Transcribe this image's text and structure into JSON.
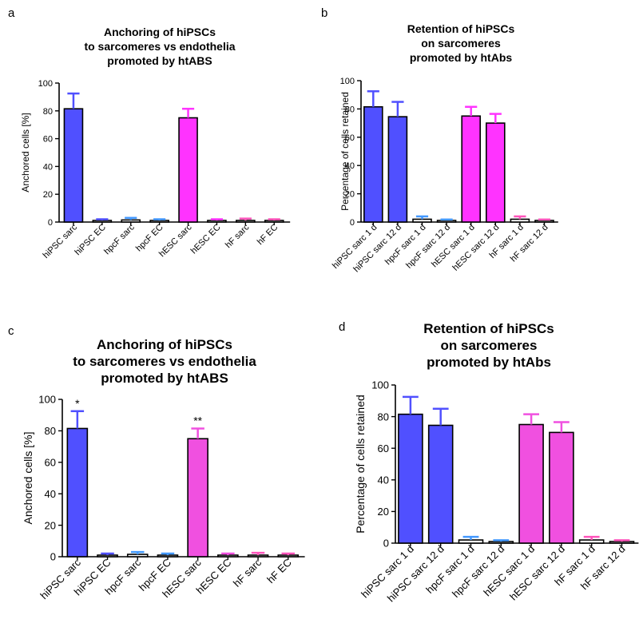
{
  "panel_letters": [
    "a",
    "b",
    "c",
    "d"
  ],
  "colors": {
    "blue": "#5050ff",
    "magenta": "#ff33ff",
    "magenta_c": "#f050e0",
    "lightblue": "#4499ff",
    "pink": "#ff55bb",
    "axis": "#000000"
  },
  "chart_data": [
    {
      "type": "bar",
      "title": [
        "Anchoring of hiPSCs",
        "to sarcomeres vs endothelia",
        "promoted by htABS"
      ],
      "ylabel": "Anchored cells [%]",
      "ylim": [
        0,
        100
      ],
      "yticks": [
        0,
        20,
        40,
        60,
        80,
        100
      ],
      "categories": [
        "hiPSC sarc",
        "hiPSC EC",
        "hpcF sarc",
        "hpcF EC",
        "hESC sarc",
        "hESC EC",
        "hF sarc",
        "hF EC"
      ],
      "values": [
        81.5,
        1.0,
        1.5,
        1.0,
        75.0,
        1.0,
        1.0,
        1.0
      ],
      "errors": [
        11.0,
        1.0,
        1.5,
        1.0,
        6.5,
        1.0,
        1.5,
        1.0
      ],
      "bar_colors": [
        "#5050ff",
        "#ffffff",
        "#ffffff",
        "#ffffff",
        "#ff33ff",
        "#ffffff",
        "#ffffff",
        "#ffffff"
      ],
      "err_colors": [
        "#5050ff",
        "#5050ff",
        "#4499ff",
        "#4499ff",
        "#ff33ff",
        "#ff33ff",
        "#ff55bb",
        "#ff55bb"
      ],
      "annotations": [
        "",
        "",
        "",
        "",
        "",
        "",
        "",
        ""
      ]
    },
    {
      "type": "bar",
      "title": [
        "Retention of hiPSCs",
        "on sarcomeres",
        "promoted by htAbs"
      ],
      "ylabel": "Percentage of cells retained",
      "ylim": [
        0,
        100
      ],
      "yticks": [
        0,
        20,
        40,
        60,
        80,
        100
      ],
      "categories": [
        "hiPSC sarc 1 d",
        "hiPSC sarc 12 d",
        "hpcF sarc 1 d",
        "hpcF sarc 12 d",
        "hESC sarc 1 d",
        "hESC sarc 12 d",
        "hF sarc 1 d",
        "hF sarc 12 d"
      ],
      "values": [
        81.5,
        74.5,
        2.0,
        1.0,
        75.0,
        70.0,
        2.0,
        1.0
      ],
      "errors": [
        11.0,
        10.5,
        2.0,
        0.8,
        6.5,
        6.5,
        2.0,
        0.8
      ],
      "bar_colors": [
        "#5050ff",
        "#5050ff",
        "#ffffff",
        "#ffffff",
        "#ff33ff",
        "#ff33ff",
        "#ffffff",
        "#ffffff"
      ],
      "err_colors": [
        "#5050ff",
        "#5050ff",
        "#4499ff",
        "#4499ff",
        "#ff33ff",
        "#ff33ff",
        "#ff55bb",
        "#ff55bb"
      ],
      "annotations": [
        "",
        "",
        "",
        "",
        "",
        "",
        "",
        ""
      ]
    },
    {
      "type": "bar",
      "title": [
        "Anchoring of hiPSCs",
        "to sarcomeres vs endothelia",
        "promoted by htABS"
      ],
      "ylabel": "Anchored cells [%]",
      "ylim": [
        0,
        100
      ],
      "yticks": [
        0,
        20,
        40,
        60,
        80,
        100
      ],
      "categories": [
        "hiPSC sarc",
        "hiPSC EC",
        "hpcF sarc",
        "hpcF EC",
        "hESC sarc",
        "hESC EC",
        "hF sarc",
        "hF EC"
      ],
      "values": [
        81.5,
        1.0,
        1.5,
        1.0,
        75.0,
        1.0,
        1.0,
        1.0
      ],
      "errors": [
        11.0,
        1.0,
        1.5,
        1.0,
        6.5,
        1.0,
        1.5,
        1.0
      ],
      "bar_colors": [
        "#5050ff",
        "#ffffff",
        "#ffffff",
        "#ffffff",
        "#f050e0",
        "#ffffff",
        "#ffffff",
        "#ffffff"
      ],
      "err_colors": [
        "#5050ff",
        "#5050ff",
        "#4499ff",
        "#4499ff",
        "#f050e0",
        "#f050e0",
        "#ff55bb",
        "#ff55bb"
      ],
      "annotations": [
        "*",
        "",
        "",
        "",
        "**",
        "",
        "",
        ""
      ]
    },
    {
      "type": "bar",
      "title": [
        "Retention of hiPSCs",
        "on sarcomeres",
        "promoted by htAbs"
      ],
      "ylabel": "Percentage of cells retained",
      "ylim": [
        0,
        100
      ],
      "yticks": [
        0,
        20,
        40,
        60,
        80,
        100
      ],
      "categories": [
        "hiPSC sarc 1 d",
        "hiPSC sarc 12 d",
        "hpcF sarc 1 d",
        "hpcF sarc 12 d",
        "hESC sarc 1 d",
        "hESC sarc 12 d",
        "hF sarc 1 d",
        "hF sarc 12 d"
      ],
      "values": [
        81.5,
        74.5,
        2.0,
        1.0,
        75.0,
        70.0,
        2.0,
        1.0
      ],
      "errors": [
        11.0,
        10.5,
        2.0,
        0.8,
        6.5,
        6.5,
        2.0,
        0.8
      ],
      "bar_colors": [
        "#5050ff",
        "#5050ff",
        "#ffffff",
        "#ffffff",
        "#f050e0",
        "#f050e0",
        "#ffffff",
        "#ffffff"
      ],
      "err_colors": [
        "#5050ff",
        "#5050ff",
        "#4499ff",
        "#4499ff",
        "#f050e0",
        "#f050e0",
        "#ff55bb",
        "#ff55bb"
      ],
      "annotations": [
        "",
        "",
        "",
        "",
        "",
        "",
        "",
        ""
      ]
    }
  ]
}
